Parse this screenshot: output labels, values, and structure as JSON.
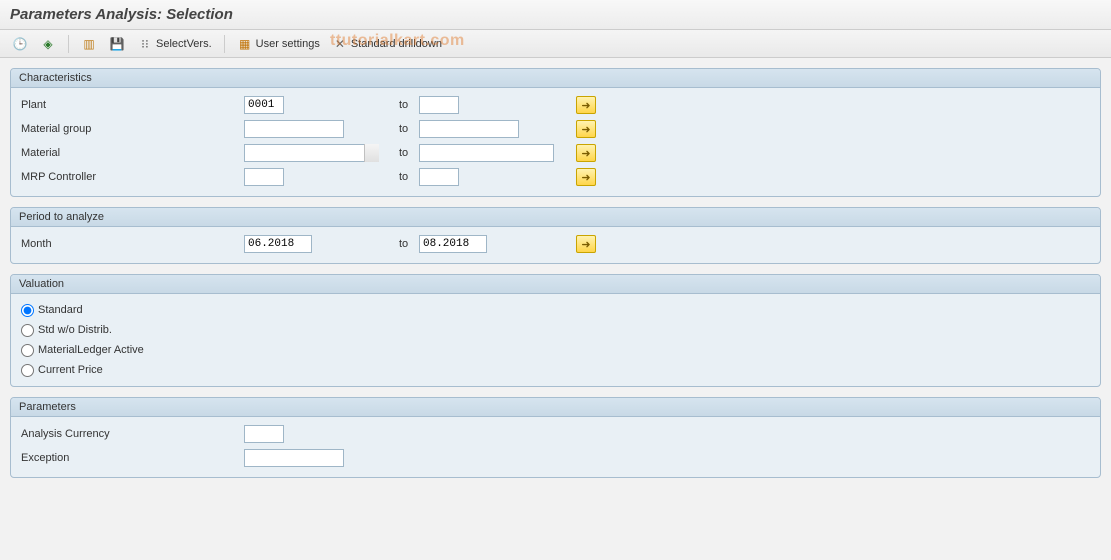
{
  "title": "Parameters Analysis: Selection",
  "toolbar": {
    "select_vers": "SelectVers.",
    "user_settings": "User settings",
    "std_drilldown": "Standard drilldown"
  },
  "watermark": "ttutorialkart.com",
  "groups": {
    "characteristics": {
      "title": "Characteristics",
      "to_label": "to",
      "plant": {
        "label": "Plant",
        "from": "0001",
        "to": ""
      },
      "material_group": {
        "label": "Material group",
        "from": "",
        "to": ""
      },
      "material": {
        "label": "Material",
        "from": "",
        "to": ""
      },
      "mrp_controller": {
        "label": "MRP Controller",
        "from": "",
        "to": ""
      }
    },
    "period": {
      "title": "Period to analyze",
      "to_label": "to",
      "month": {
        "label": "Month",
        "from": "06.2018",
        "to": "08.2018"
      }
    },
    "valuation": {
      "title": "Valuation",
      "options": {
        "standard": "Standard",
        "std_wo_distrib": "Std w/o Distrib.",
        "ml_active": "MaterialLedger Active",
        "current_price": "Current Price"
      },
      "selected": "standard"
    },
    "parameters": {
      "title": "Parameters",
      "analysis_currency": {
        "label": "Analysis Currency",
        "value": ""
      },
      "exception": {
        "label": "Exception",
        "value": ""
      }
    }
  },
  "colors": {
    "group_border": "#a7bdcf",
    "group_bg": "#e9f0f5",
    "header_grad_top": "#d6e4ef",
    "header_grad_bot": "#c8d9e6",
    "more_btn_bg": "#ffd54a"
  }
}
